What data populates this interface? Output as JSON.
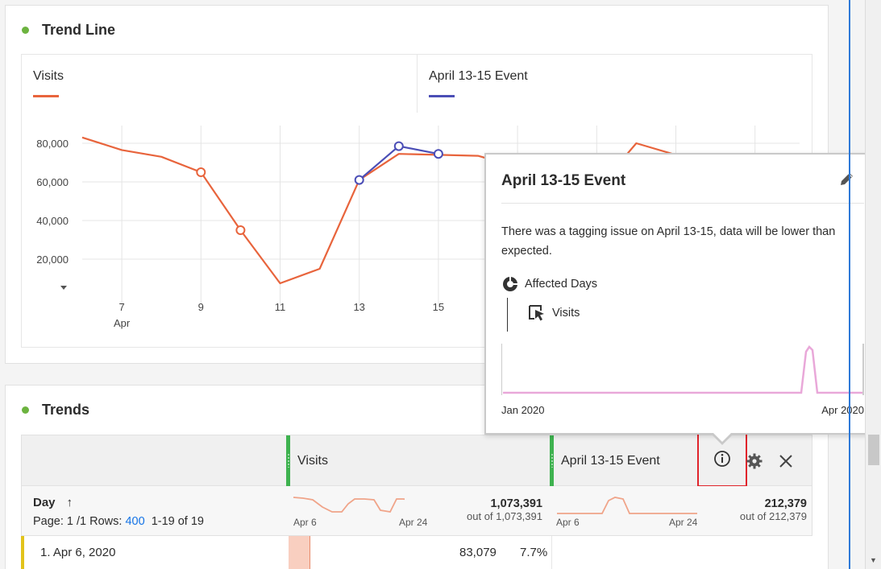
{
  "trend_panel": {
    "title": "Trend Line",
    "legend": [
      {
        "label": "Visits",
        "color": "#e8643c"
      },
      {
        "label": "April 13-15 Event",
        "color": "#4b4eb6"
      }
    ]
  },
  "chart_data": {
    "type": "line",
    "title": "",
    "y_ticks": [
      "80,000",
      "60,000",
      "40,000",
      "20,000"
    ],
    "x_ticks": [
      {
        "day": 7,
        "label": "7",
        "sublabel": "Apr"
      },
      {
        "day": 9,
        "label": "9",
        "sublabel": ""
      },
      {
        "day": 11,
        "label": "11",
        "sublabel": ""
      },
      {
        "day": 13,
        "label": "13",
        "sublabel": ""
      },
      {
        "day": 15,
        "label": "15",
        "sublabel": ""
      }
    ],
    "ylim": [
      0,
      85000
    ],
    "xlim": [
      5.9,
      23
    ],
    "series": [
      {
        "name": "Visits",
        "color": "#e8643c",
        "points": [
          [
            6,
            83000
          ],
          [
            7,
            76500
          ],
          [
            8,
            73000
          ],
          [
            9,
            65000
          ],
          [
            10,
            35000
          ],
          [
            11,
            7500
          ],
          [
            12,
            15000
          ],
          [
            13,
            61000
          ],
          [
            14,
            74500
          ],
          [
            15,
            74000
          ],
          [
            16,
            73500
          ],
          [
            19,
            56000
          ],
          [
            20,
            80000
          ],
          [
            21,
            74000
          ],
          [
            22,
            73000
          ],
          [
            23,
            72500
          ]
        ],
        "markers": [
          9,
          10
        ]
      },
      {
        "name": "April 13-15 Event",
        "color": "#4b4eb6",
        "points": [
          [
            13,
            61000
          ],
          [
            14,
            78500
          ],
          [
            15,
            74500
          ]
        ],
        "markers": [
          13,
          14,
          15
        ]
      }
    ]
  },
  "popover": {
    "title": "April 13-15 Event",
    "description": "There was a tagging issue on April 13-15, data will be lower than expected.",
    "affected_label": "Affected Days",
    "metric_label": "Visits",
    "spark_start": "Jan 2020",
    "spark_end": "Apr 2020",
    "spark_color": "#e9a8d9"
  },
  "trends_panel": {
    "title": "Trends",
    "columns": [
      {
        "label": "Visits"
      },
      {
        "label": "April 13-15 Event"
      }
    ],
    "dimension": "Day",
    "page_text": "Page: 1 /1 Rows:",
    "rows_value": "400",
    "range_text": "1-19 of 19",
    "visits_total": "1,073,391",
    "visits_out_of": "out of 1,073,391",
    "event_total": "212,379",
    "event_out_of": "out of 212,379",
    "spark_start": "Apr 6",
    "spark_end": "Apr 24",
    "rows": [
      {
        "name": "1. Apr 6, 2020",
        "visits": "83,079",
        "pct": "7.7%"
      }
    ]
  }
}
